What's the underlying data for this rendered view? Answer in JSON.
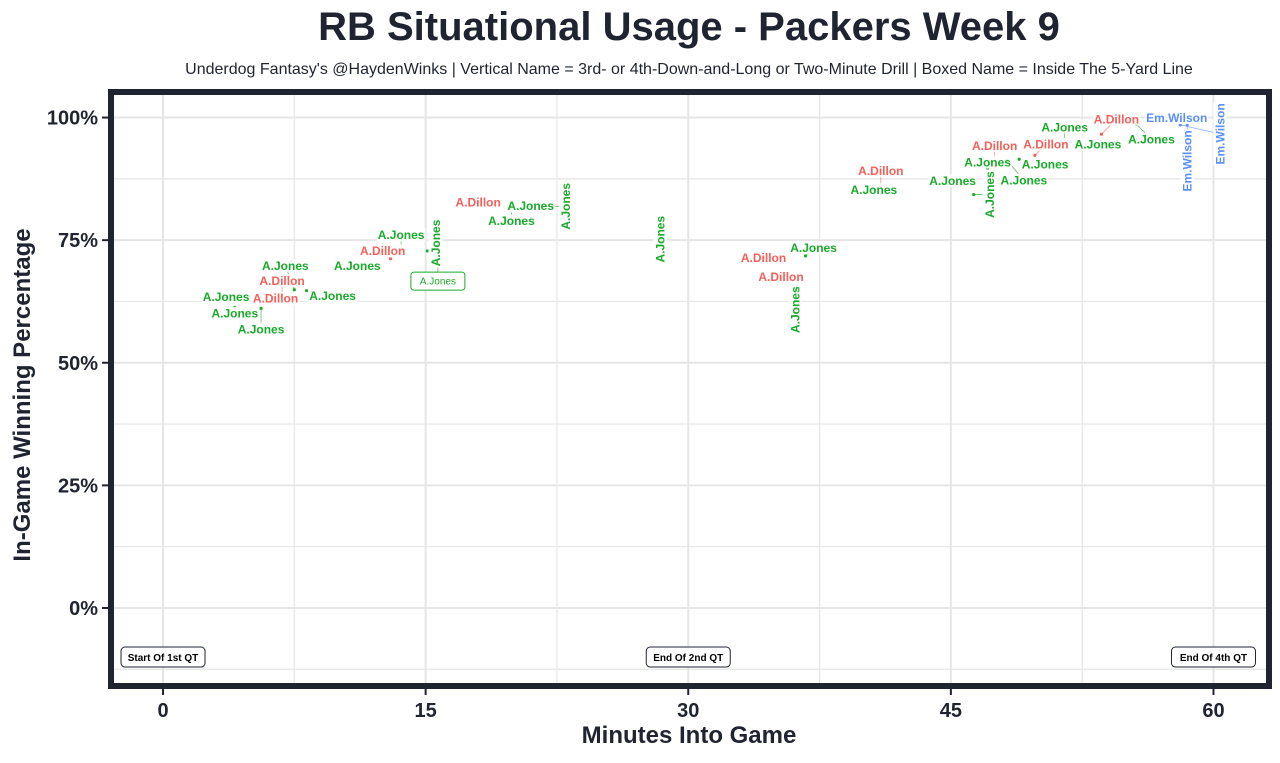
{
  "chart_data": {
    "type": "scatter",
    "title": "RB Situational Usage - Packers Week 9",
    "subtitle": "Underdog Fantasy's @HaydenWinks | Vertical Name = 3rd- or 4th-Down-and-Long or Two-Minute Drill | Boxed Name = Inside The 5-Yard Line",
    "xlabel": "Minutes Into Game",
    "ylabel": "In-Game Winning Percentage",
    "xlim": [
      -2.8,
      63
    ],
    "ylim": [
      -15.3,
      104.6
    ],
    "xticks": [
      0,
      15,
      30,
      45,
      60
    ],
    "xtick_labels": [
      "0",
      "15",
      "30",
      "45",
      "60"
    ],
    "yticks": [
      0,
      25,
      50,
      75,
      100
    ],
    "ytick_labels": [
      "0%",
      "25%",
      "50%",
      "75%",
      "100%"
    ],
    "grid": true,
    "colors": {
      "A.Jones": "#1aaa2c",
      "A.Dillon": "#f5605a",
      "Em.Wilson": "#5b8ff9",
      "title": "#1f2430",
      "frame": "#1f2430"
    },
    "points": [
      {
        "name": "A.Jones",
        "x": 3.6,
        "y": 63.5,
        "style": "normal"
      },
      {
        "name": "A.Jones",
        "x": 4.1,
        "y": 61.3,
        "style": "normal"
      },
      {
        "name": "A.Jones",
        "x": 5.6,
        "y": 61.1,
        "style": "normal"
      },
      {
        "name": "A.Dillon",
        "x": 6.2,
        "y": 62.3,
        "style": "normal"
      },
      {
        "name": "A.Dillon",
        "x": 6.8,
        "y": 63.5,
        "style": "normal"
      },
      {
        "name": "A.Jones",
        "x": 7.5,
        "y": 64.9,
        "style": "normal"
      },
      {
        "name": "A.Jones",
        "x": 8.2,
        "y": 64.7,
        "style": "normal"
      },
      {
        "name": "A.Jones",
        "x": 11.1,
        "y": 69.8,
        "style": "normal"
      },
      {
        "name": "A.Dillon",
        "x": 13.0,
        "y": 71.2,
        "style": "normal"
      },
      {
        "name": "A.Jones",
        "x": 13.6,
        "y": 72.8,
        "style": "normal"
      },
      {
        "name": "A.Jones",
        "x": 15.1,
        "y": 72.8,
        "style": "vertical"
      },
      {
        "name": "A.Jones",
        "x": 15.7,
        "y": 74.0,
        "style": "boxed"
      },
      {
        "name": "A.Dillon",
        "x": 18.0,
        "y": 82.7,
        "style": "normal"
      },
      {
        "name": "A.Jones",
        "x": 19.9,
        "y": 82.2,
        "style": "normal"
      },
      {
        "name": "A.Jones",
        "x": 21.0,
        "y": 82.0,
        "style": "normal"
      },
      {
        "name": "A.Jones",
        "x": 21.8,
        "y": 81.9,
        "style": "vertical"
      },
      {
        "name": "A.Jones",
        "x": 28.4,
        "y": 75.2,
        "style": "vertical"
      },
      {
        "name": "A.Dillon",
        "x": 34.3,
        "y": 71.4,
        "style": "normal"
      },
      {
        "name": "A.Jones",
        "x": 36.7,
        "y": 71.8,
        "style": "normal"
      },
      {
        "name": "A.Dillon",
        "x": 35.3,
        "y": 67.5,
        "style": "normal"
      },
      {
        "name": "A.Jones",
        "x": 36.1,
        "y": 65.1,
        "style": "vertical"
      },
      {
        "name": "A.Jones",
        "x": 40.6,
        "y": 85.3,
        "style": "normal"
      },
      {
        "name": "A.Dillon",
        "x": 41.0,
        "y": 85.9,
        "style": "normal"
      },
      {
        "name": "A.Jones",
        "x": 45.1,
        "y": 87.1,
        "style": "normal"
      },
      {
        "name": "A.Jones",
        "x": 46.3,
        "y": 84.3,
        "style": "vertical"
      },
      {
        "name": "A.Jones",
        "x": 47.1,
        "y": 89.7,
        "style": "normal"
      },
      {
        "name": "A.Dillon",
        "x": 47.5,
        "y": 90.0,
        "style": "normal"
      },
      {
        "name": "A.Jones",
        "x": 48.2,
        "y": 91.3,
        "style": "normal"
      },
      {
        "name": "A.Jones",
        "x": 48.9,
        "y": 91.5,
        "style": "normal"
      },
      {
        "name": "A.Dillon",
        "x": 49.8,
        "y": 92.3,
        "style": "normal"
      },
      {
        "name": "A.Jones",
        "x": 51.5,
        "y": 94.8,
        "style": "normal"
      },
      {
        "name": "A.Jones",
        "x": 52.2,
        "y": 94.6,
        "style": "normal"
      },
      {
        "name": "A.Dillon",
        "x": 53.6,
        "y": 96.6,
        "style": "normal"
      },
      {
        "name": "A.Jones",
        "x": 55.6,
        "y": 98.6,
        "style": "normal"
      },
      {
        "name": "Em.Wilson",
        "x": 56.7,
        "y": 100.0,
        "style": "normal"
      },
      {
        "name": "Em.Wilson",
        "x": 58.1,
        "y": 98.5,
        "style": "vertical"
      },
      {
        "name": "Em.Wilson",
        "x": 58.5,
        "y": 98.5,
        "style": "vertical"
      }
    ],
    "annotations": [
      {
        "text": "Start Of 1st QT",
        "x": 0,
        "y": -10
      },
      {
        "text": "End Of 2nd QT",
        "x": 30,
        "y": -10
      },
      {
        "text": "End Of 4th QT",
        "x": 60,
        "y": -10
      }
    ]
  }
}
